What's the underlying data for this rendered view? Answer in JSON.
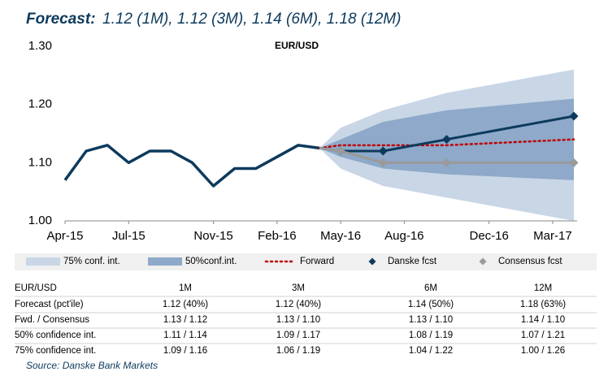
{
  "chart_data": {
    "type": "line",
    "title": "Forecast:",
    "subtitle": "1.12 (1M), 1.12 (3M), 1.14 (6M), 1.18 (12M)",
    "annotation": "EUR/USD",
    "xlim": [
      "Apr-15",
      "Apr-17"
    ],
    "xticks": [
      "Apr-15",
      "Jul-15",
      "Nov-15",
      "Feb-16",
      "May-16",
      "Aug-16",
      "Dec-16",
      "Mar-17"
    ],
    "ylim": [
      1.0,
      1.3
    ],
    "yticks": [
      {
        "value": 1.0,
        "label": "1.00"
      },
      {
        "value": 1.1,
        "label": "1.10"
      },
      {
        "value": 1.2,
        "label": "1.20"
      },
      {
        "value": 1.3,
        "label": "1.30"
      }
    ],
    "bands": [
      {
        "name": "75% conf. int.",
        "color": "#c8d6e6",
        "x": [
          "Apr-16",
          "May-16",
          "Jul-16",
          "Oct-16",
          "Apr-17"
        ],
        "lower": [
          1.125,
          1.09,
          1.06,
          1.04,
          1.0
        ],
        "upper": [
          1.125,
          1.16,
          1.19,
          1.22,
          1.26
        ]
      },
      {
        "name": "50%conf.int.",
        "color": "#8ea9c9",
        "x": [
          "Apr-16",
          "May-16",
          "Jul-16",
          "Oct-16",
          "Apr-17"
        ],
        "lower": [
          1.125,
          1.11,
          1.09,
          1.08,
          1.07
        ],
        "upper": [
          1.125,
          1.14,
          1.17,
          1.19,
          1.21
        ]
      }
    ],
    "history": {
      "color": "#0d3a5c",
      "x": [
        "Apr-15",
        "May-15",
        "Jun-15",
        "Jul-15",
        "Aug-15",
        "Sep-15",
        "Oct-15",
        "Nov-15",
        "Dec-15",
        "Jan-16",
        "Feb-16",
        "Mar-16",
        "Apr-16"
      ],
      "values": [
        1.07,
        1.12,
        1.13,
        1.1,
        1.12,
        1.12,
        1.1,
        1.06,
        1.09,
        1.09,
        1.11,
        1.13,
        1.125
      ]
    },
    "series": [
      {
        "name": "Forward",
        "color": "#c00000",
        "style": "dotted",
        "x": [
          "Apr-16",
          "May-16",
          "Jul-16",
          "Oct-16",
          "Apr-17"
        ],
        "values": [
          1.125,
          1.13,
          1.13,
          1.13,
          1.14
        ]
      },
      {
        "name": "Danske fcst",
        "color": "#0d3a5c",
        "style": "marker",
        "x": [
          "Apr-16",
          "May-16",
          "Jul-16",
          "Oct-16",
          "Apr-17"
        ],
        "values": [
          1.125,
          1.12,
          1.12,
          1.14,
          1.18
        ]
      },
      {
        "name": "Consensus fcst",
        "color": "#9a9a9a",
        "style": "marker",
        "x": [
          "Apr-16",
          "May-16",
          "Jul-16",
          "Oct-16",
          "Apr-17"
        ],
        "values": [
          1.125,
          1.12,
          1.1,
          1.1,
          1.1
        ]
      }
    ]
  },
  "table": {
    "columns": [
      "EUR/USD",
      "1M",
      "3M",
      "6M",
      "12M"
    ],
    "rows": [
      [
        "Forecast (pct'ile)",
        "1.12 (40%)",
        "1.12 (40%)",
        "1.14 (50%)",
        "1.18 (63%)"
      ],
      [
        "Fwd. / Consensus",
        "1.13 / 1.12",
        "1.13 / 1.10",
        "1.13 / 1.10",
        "1.14 / 1.10"
      ],
      [
        "50% confidence int.",
        "1.11 / 1.14",
        "1.09 / 1.17",
        "1.08 / 1.19",
        "1.07 / 1.21"
      ],
      [
        "75% confidence int.",
        "1.09 / 1.16",
        "1.06 / 1.19",
        "1.04 / 1.22",
        "1.00 / 1.26"
      ]
    ]
  },
  "source": "Source: Danske Bank Markets"
}
